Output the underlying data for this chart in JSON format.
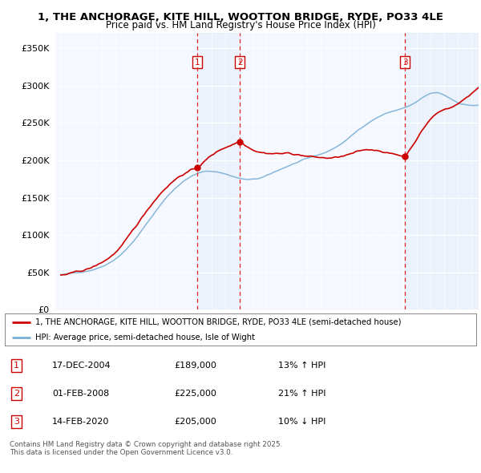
{
  "title_line1": "1, THE ANCHORAGE, KITE HILL, WOOTTON BRIDGE, RYDE, PO33 4LE",
  "title_line2": "Price paid vs. HM Land Registry's House Price Index (HPI)",
  "legend_property": "1, THE ANCHORAGE, KITE HILL, WOOTTON BRIDGE, RYDE, PO33 4LE (semi-detached house)",
  "legend_hpi": "HPI: Average price, semi-detached house, Isle of Wight",
  "property_color": "#cc0000",
  "hpi_color": "#7ab0d4",
  "sale_line_color": "#dd0000",
  "shade_color": "#dce8f5",
  "background_color": "#f5f8ff",
  "ylim": [
    0,
    370000
  ],
  "yticks": [
    0,
    50000,
    100000,
    150000,
    200000,
    250000,
    300000,
    350000
  ],
  "xlim_start": 1994.6,
  "xlim_end": 2025.5,
  "sales": [
    {
      "date_num": 2004.96,
      "price": 189000,
      "label": "1"
    },
    {
      "date_num": 2008.08,
      "price": 225000,
      "label": "2"
    },
    {
      "date_num": 2020.12,
      "price": 205000,
      "label": "3"
    }
  ],
  "sale_labels": [
    {
      "num": "1",
      "date": "17-DEC-2004",
      "price": "£189,000",
      "pct": "13%",
      "dir": "↑",
      "rel": "HPI"
    },
    {
      "num": "2",
      "date": "01-FEB-2008",
      "price": "£225,000",
      "pct": "21%",
      "dir": "↑",
      "rel": "HPI"
    },
    {
      "num": "3",
      "date": "14-FEB-2020",
      "price": "£205,000",
      "pct": "10%",
      "dir": "↓",
      "rel": "HPI"
    }
  ],
  "footnote": "Contains HM Land Registry data © Crown copyright and database right 2025.\nThis data is licensed under the Open Government Licence v3.0."
}
